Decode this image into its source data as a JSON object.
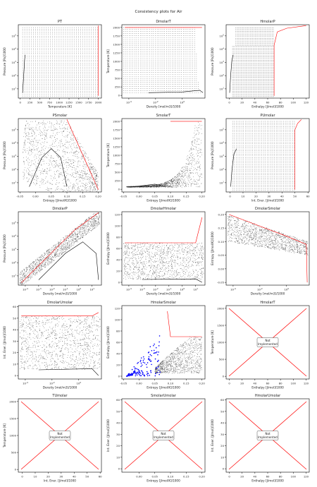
{
  "figure": {
    "suptitle": "Consistency plots for Air"
  },
  "colors": {
    "grid_points": "#333333",
    "boundary": "#ff0000",
    "markers": "#0000ff",
    "curve": "#000000"
  },
  "not_implemented_label": "Not\nImplemented",
  "chart_data": [
    {
      "type": "scatter",
      "title": "PT",
      "xlabel": "Temperature [K]",
      "ylabel": "Pressure [Pa]/1000",
      "xscale": "linear",
      "yscale": "log",
      "xlim": [
        -50,
        2080
      ],
      "ylim": [
        2,
        700000
      ],
      "xticks": [
        0,
        250,
        500,
        750,
        1000,
        1250,
        1500,
        1750,
        2000
      ],
      "yticks": [
        10,
        100,
        1000,
        10000,
        100000
      ],
      "yticklabels": [
        "10^1",
        "10^2",
        "10^3",
        "10^4",
        "10^5"
      ],
      "implemented": true
    },
    {
      "type": "scatter",
      "title": "DmolarT",
      "xlabel": "Density [mol/m3]/1000",
      "ylabel": "Temperature [K]",
      "xscale": "log",
      "yscale": "linear",
      "xlim": [
        3e-05,
        50
      ],
      "ylim": [
        -80,
        2080
      ],
      "xticks": [
        0.0001,
        0.01,
        1
      ],
      "xticklabels": [
        "10^-4",
        "10^-2",
        "10^0"
      ],
      "yticks": [
        0,
        250,
        500,
        750,
        1000,
        1250,
        1500,
        1750,
        2000
      ],
      "implemented": true
    },
    {
      "type": "scatter",
      "title": "HmolarP",
      "xlabel": "Enthalpy [J/mol]/1000",
      "ylabel": "Pressure [Pa]/1000",
      "xscale": "linear",
      "yscale": "log",
      "xlim": [
        -5,
        125
      ],
      "ylim": [
        2,
        700000
      ],
      "xticks": [
        0,
        20,
        40,
        60,
        80,
        100,
        120
      ],
      "yticks": [
        10,
        100,
        1000,
        10000,
        100000
      ],
      "yticklabels": [
        "10^1",
        "10^2",
        "10^3",
        "10^4",
        "10^5"
      ],
      "implemented": true
    },
    {
      "type": "scatter",
      "title": "PSmolar",
      "xlabel": "Entropy [J/mol/K]/1000",
      "ylabel": "Pressure [Pa]/1000",
      "xscale": "linear",
      "yscale": "log",
      "xlim": [
        -0.055,
        0.21
      ],
      "ylim": [
        2,
        700000
      ],
      "xticks": [
        -0.05,
        0,
        0.05,
        0.1,
        0.15,
        0.2
      ],
      "xticklabels": [
        "-0.05",
        "0.00",
        "0.05",
        "0.10",
        "0.15",
        "0.20"
      ],
      "yticks": [
        10,
        100,
        1000,
        10000,
        100000
      ],
      "yticklabels": [
        "10^1",
        "10^2",
        "10^3",
        "10^4",
        "10^5"
      ],
      "implemented": true
    },
    {
      "type": "scatter",
      "title": "SmolarT",
      "xlabel": "Entropy [J/mol/K]/1000",
      "ylabel": "Temperature [K]",
      "xscale": "linear",
      "yscale": "linear",
      "xlim": [
        -0.055,
        0.21
      ],
      "ylim": [
        -80,
        2080
      ],
      "xticks": [
        -0.05,
        0,
        0.05,
        0.1,
        0.15,
        0.2
      ],
      "xticklabels": [
        "-0.05",
        "0.00",
        "0.05",
        "0.10",
        "0.15",
        "0.20"
      ],
      "yticks": [
        0,
        250,
        500,
        750,
        1000,
        1250,
        1500,
        1750,
        2000
      ],
      "implemented": true
    },
    {
      "type": "scatter",
      "title": "PUmolar",
      "xlabel": "Int. Ener. [J/mol]/1000",
      "ylabel": "Pressure [Pa]/1000",
      "xscale": "linear",
      "yscale": "log",
      "xlim": [
        -3,
        61
      ],
      "ylim": [
        2,
        700000
      ],
      "xticks": [
        0,
        10,
        20,
        30,
        40,
        50,
        60
      ],
      "yticks": [
        10,
        100,
        1000,
        10000,
        100000
      ],
      "yticklabels": [
        "10^1",
        "10^2",
        "10^3",
        "10^4",
        "10^5"
      ],
      "implemented": true
    },
    {
      "type": "scatter",
      "title": "DmolarP",
      "xlabel": "Density [mol/m3]/1000",
      "ylabel": "Pressure [Pa]/1000",
      "xscale": "log",
      "yscale": "log",
      "xlim": [
        3e-05,
        50
      ],
      "ylim": [
        2,
        700000
      ],
      "xticks": [
        0.0001,
        0.001,
        0.01,
        0.1,
        1,
        10
      ],
      "xticklabels": [
        "10^-4",
        "10^-3",
        "10^-2",
        "10^-1",
        "10^0",
        "10^1"
      ],
      "yticks": [
        10,
        100,
        1000,
        10000,
        100000
      ],
      "yticklabels": [
        "10^1",
        "10^2",
        "10^3",
        "10^4",
        "10^5"
      ],
      "implemented": true
    },
    {
      "type": "scatter",
      "title": "DmolarHmolar",
      "xlabel": "Density [mol/m3]/1000",
      "ylabel": "Enthalpy [J/mol]/1000",
      "xscale": "log",
      "yscale": "linear",
      "xlim": [
        3e-05,
        50
      ],
      "ylim": [
        -5,
        125
      ],
      "xticks": [
        0.0001,
        0.001,
        0.01,
        0.1,
        1,
        10
      ],
      "xticklabels": [
        "10^-4",
        "10^-3",
        "10^-2",
        "10^-1",
        "10^0",
        "10^1"
      ],
      "yticks": [
        0,
        20,
        40,
        60,
        80,
        100,
        120
      ],
      "implemented": true
    },
    {
      "type": "scatter",
      "title": "DmolarSmolar",
      "xlabel": "Density [mol/m3]/1000",
      "ylabel": "Entropy [J/mol/K]/1000",
      "xscale": "log",
      "yscale": "linear",
      "xlim": [
        3e-05,
        50
      ],
      "ylim": [
        -0.06,
        0.21
      ],
      "xticks": [
        0.0001,
        0.01,
        1
      ],
      "xticklabels": [
        "10^-4",
        "10^-2",
        "10^0"
      ],
      "yticks": [
        -0.05,
        0,
        0.05,
        0.1,
        0.15,
        0.2
      ],
      "yticklabels": [
        "-0.05",
        "0.00",
        "0.05",
        "0.10",
        "0.15",
        "0.20"
      ],
      "implemented": true
    },
    {
      "type": "scatter",
      "title": "DmolarUmolar",
      "xlabel": "Density [mol/m3]/1000",
      "ylabel": "Int. Ener. [J/mol]/1000",
      "xscale": "log",
      "yscale": "linear",
      "xlim": [
        3e-05,
        50
      ],
      "ylim": [
        -3,
        61
      ],
      "xticks": [
        0.0001,
        0.01,
        1
      ],
      "xticklabels": [
        "10^-4",
        "10^-2",
        "10^0"
      ],
      "yticks": [
        0,
        10,
        20,
        30,
        40,
        50,
        60
      ],
      "implemented": true
    },
    {
      "type": "scatter",
      "title": "HmolarSmolar",
      "xlabel": "Entropy [J/mol/K]/1000",
      "ylabel": "Enthalpy [J/mol]/1000",
      "xscale": "linear",
      "yscale": "linear",
      "xlim": [
        -0.055,
        0.21
      ],
      "ylim": [
        -5,
        125
      ],
      "xticks": [
        -0.05,
        0,
        0.05,
        0.1,
        0.15,
        0.2
      ],
      "xticklabels": [
        "-0.05",
        "0.00",
        "0.05",
        "0.10",
        "0.15",
        "0.20"
      ],
      "yticks": [
        0,
        20,
        40,
        60,
        80,
        100,
        120
      ],
      "implemented": true
    },
    {
      "type": "line",
      "title": "HmolarT",
      "xlabel": "Enthalpy [J/mol]/1000",
      "ylabel": "Temperature [K]",
      "xscale": "linear",
      "yscale": "linear",
      "xlim": [
        -5,
        125
      ],
      "ylim": [
        -80,
        2080
      ],
      "xticks": [
        0,
        20,
        40,
        60,
        80,
        100,
        120
      ],
      "yticks": [
        0,
        500,
        1000,
        1500,
        2000
      ],
      "implemented": false
    },
    {
      "type": "line",
      "title": "TUmolar",
      "xlabel": "Int. Ener. [J/mol]/1000",
      "ylabel": "Temperature [K]",
      "xscale": "linear",
      "yscale": "linear",
      "xlim": [
        -3,
        61
      ],
      "ylim": [
        -80,
        2080
      ],
      "xticks": [
        0,
        10,
        20,
        30,
        40,
        50,
        60
      ],
      "yticks": [
        0,
        500,
        1000,
        1500,
        2000
      ],
      "implemented": false
    },
    {
      "type": "line",
      "title": "SmolarUmolar",
      "xlabel": "Entropy [J/mol/K]/1000",
      "ylabel": "Int. Ener. [J/mol]/1000",
      "xscale": "linear",
      "yscale": "linear",
      "xlim": [
        -0.055,
        0.21
      ],
      "ylim": [
        -3,
        61
      ],
      "xticks": [
        0,
        0.05,
        0.1,
        0.15,
        0.2
      ],
      "xticklabels": [
        "0.00",
        "0.05",
        "0.10",
        "0.15",
        "0.20"
      ],
      "yticks": [
        0,
        10,
        20,
        30,
        40,
        50,
        60
      ],
      "implemented": false
    },
    {
      "type": "line",
      "title": "HmolarUmolar",
      "xlabel": "Enthalpy [J/mol]/1000",
      "ylabel": "Int. Ener. [J/mol]/1000",
      "xscale": "linear",
      "yscale": "linear",
      "xlim": [
        -5,
        125
      ],
      "ylim": [
        -3,
        61
      ],
      "xticks": [
        0,
        20,
        40,
        60,
        80,
        100,
        120
      ],
      "yticks": [
        0,
        10,
        20,
        30,
        40,
        50,
        60
      ],
      "implemented": false
    }
  ]
}
